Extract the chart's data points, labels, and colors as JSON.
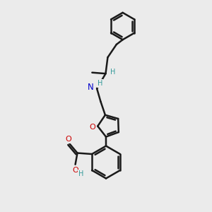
{
  "bg_color": "#ebebeb",
  "bond_color": "#1a1a1a",
  "N_color": "#0000cc",
  "O_color": "#cc0000",
  "H_color": "#339999",
  "line_width": 1.8,
  "figsize": [
    3.0,
    3.0
  ],
  "dpi": 100,
  "xlim": [
    0,
    10
  ],
  "ylim": [
    0,
    10
  ]
}
